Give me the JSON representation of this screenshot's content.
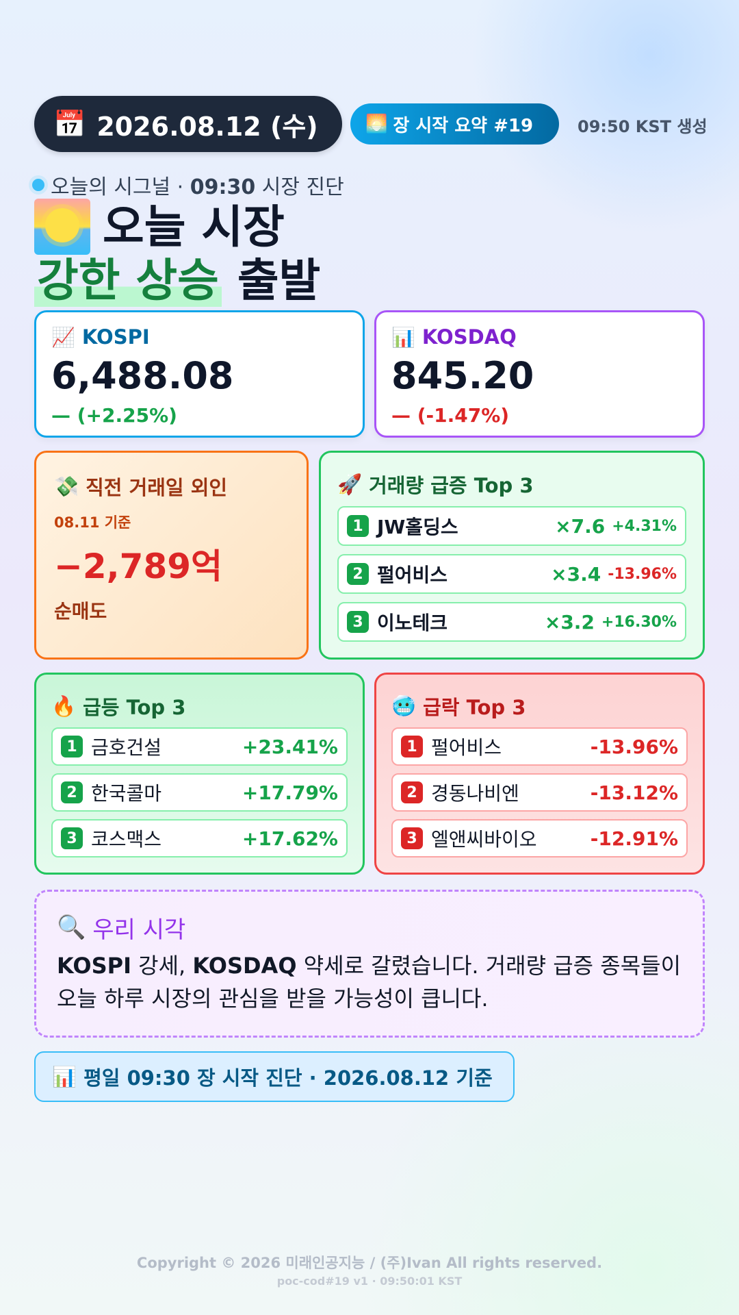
{
  "header": {
    "date_icon": "calendar-icon",
    "date_icon_glyph": "📅",
    "date": "2026.08.12 (수)",
    "summary_icon": "sunrise-icon",
    "summary_icon_glyph": "🌅",
    "summary": "장 시작 요약 #19",
    "generated": "09:50 KST 생성"
  },
  "signal": {
    "prefix": "오늘의 시그널 · ",
    "time": "09:30",
    "suffix": " 시장 진단"
  },
  "headline": {
    "line1": "오늘 시장",
    "highlight": "강한 상승",
    "rest": " 출발"
  },
  "indices": [
    {
      "icon": "chart-up-icon",
      "glyph": "📈",
      "name": "KOSPI",
      "value": "6,488.08",
      "change": "— (+2.25%)",
      "direction": "up"
    },
    {
      "icon": "bar-chart-icon",
      "glyph": "📊",
      "name": "KOSDAQ",
      "value": "845.20",
      "change": "— (-1.47%)",
      "direction": "down"
    }
  ],
  "foreign": {
    "icon": "money-wings-icon",
    "glyph": "💸",
    "title": "직전 거래일 외인",
    "basis": "08.11 기준",
    "amount": "−2,789억",
    "kind": "순매도"
  },
  "volume_surge": {
    "icon": "rocket-icon",
    "glyph": "🚀",
    "title": "거래량 급증 Top 3",
    "items": [
      {
        "rank": "1",
        "name": "JW홀딩스",
        "multiple": "×7.6",
        "pct": "+4.31%",
        "direction": "up"
      },
      {
        "rank": "2",
        "name": "펄어비스",
        "multiple": "×3.4",
        "pct": "-13.96%",
        "direction": "down"
      },
      {
        "rank": "3",
        "name": "이노테크",
        "multiple": "×3.2",
        "pct": "+16.30%",
        "direction": "up"
      }
    ]
  },
  "surge": {
    "icon": "fire-icon",
    "glyph": "🔥",
    "title": "급등 Top 3",
    "items": [
      {
        "rank": "1",
        "name": "금호건설",
        "pct": "+23.41%"
      },
      {
        "rank": "2",
        "name": "한국콜마",
        "pct": "+17.79%"
      },
      {
        "rank": "3",
        "name": "코스맥스",
        "pct": "+17.62%"
      }
    ]
  },
  "plunge": {
    "icon": "cold-face-icon",
    "glyph": "🥶",
    "title": "급락 Top 3",
    "items": [
      {
        "rank": "1",
        "name": "펄어비스",
        "pct": "-13.96%"
      },
      {
        "rank": "2",
        "name": "경동나비엔",
        "pct": "-13.12%"
      },
      {
        "rank": "3",
        "name": "엘앤씨바이오",
        "pct": "-12.91%"
      }
    ]
  },
  "view": {
    "icon": "magnifier-icon",
    "glyph": "🔍",
    "title": "우리 시각",
    "t1": "KOSPI",
    "t2": " 강세, ",
    "t3": "KOSDAQ",
    "t4": " 약세로 갈렸습니다. 거래량 급증 종목들이 오늘 하루 시장의 관심을 받을 가능성이 큽니다."
  },
  "footer_pill": {
    "icon": "bar-chart-icon",
    "glyph": "📊",
    "text": "평일 09:30 장 시작 진단 · 2026.08.12 기준"
  },
  "copyright": "Copyright © 2026 미래인공지능 / (주)Ivan All rights reserved.",
  "version": "poc-cod#19 v1 · 09:50:01 KST",
  "colors": {
    "up": "#16a34a",
    "down": "#dc2626",
    "kospi_accent": "#0ea5e9",
    "kosdaq_accent": "#a855f7",
    "dark_pill": "#1e293b"
  }
}
